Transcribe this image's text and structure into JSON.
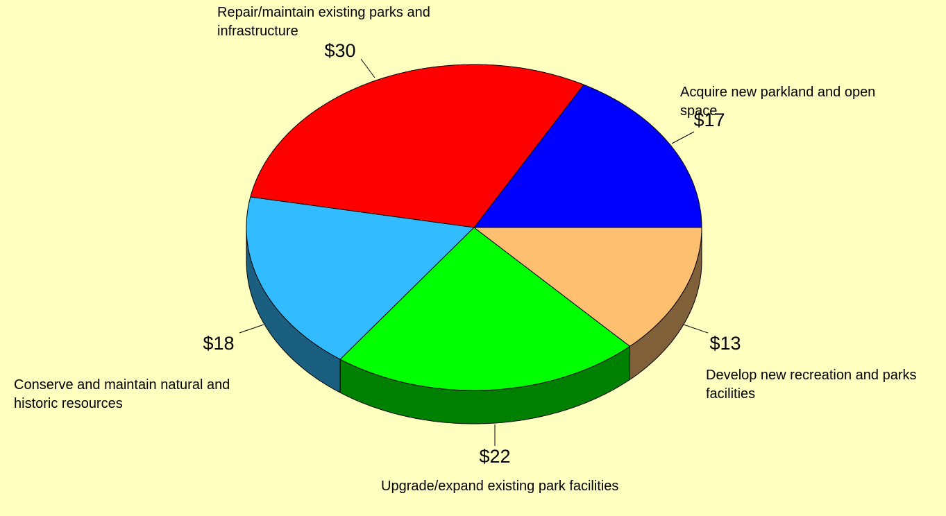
{
  "chart_data": {
    "type": "pie3d",
    "categories": [
      "Acquire new parkland and open space",
      "Repair/maintain existing parks and infrastructure",
      "Conserve and maintain natural and historic resources",
      "Upgrade/expand existing park facilities",
      "Develop new recreation and parks facilities"
    ],
    "values": [
      17,
      30,
      18,
      22,
      13
    ],
    "value_labels": [
      "$17",
      "$30",
      "$18",
      "$22",
      "$13"
    ],
    "colors": [
      "#0000ff",
      "#ff0000",
      "#33bbff",
      "#00ff00",
      "#ffbf70"
    ],
    "side_colors": [
      "#000080",
      "#800000",
      "#1a5e80",
      "#008000",
      "#806038"
    ]
  }
}
